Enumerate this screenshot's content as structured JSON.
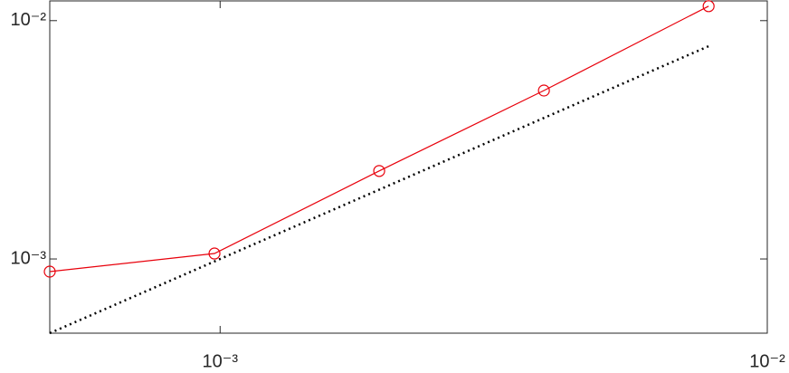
{
  "chart_data": {
    "type": "line",
    "x": [
      0.00048828,
      0.00097656,
      0.0019531,
      0.0039063,
      0.0078125
    ],
    "series": [
      {
        "color": "#e8000b",
        "marker": "circle",
        "style": "solid",
        "values": [
          0.000885,
          0.001054,
          0.00234,
          0.00509,
          0.0115
        ]
      },
      {
        "color": "#000000",
        "marker": "none",
        "style": "dotted",
        "values": [
          0.00048828,
          0.00097656,
          0.0019531,
          0.0039063,
          0.0078125
        ]
      }
    ],
    "xscale": "log",
    "yscale": "log",
    "xlim": [
      0.00048828,
      0.01
    ],
    "ylim": [
      0.00048828,
      0.0121
    ],
    "xticks": [
      {
        "value": 0.001,
        "label": "10⁻³"
      },
      {
        "value": 0.01,
        "label": "10⁻²"
      }
    ],
    "yticks": [
      {
        "value": 0.001,
        "label": "10⁻³"
      },
      {
        "value": 0.01,
        "label": "10⁻²"
      }
    ],
    "grid": false
  }
}
